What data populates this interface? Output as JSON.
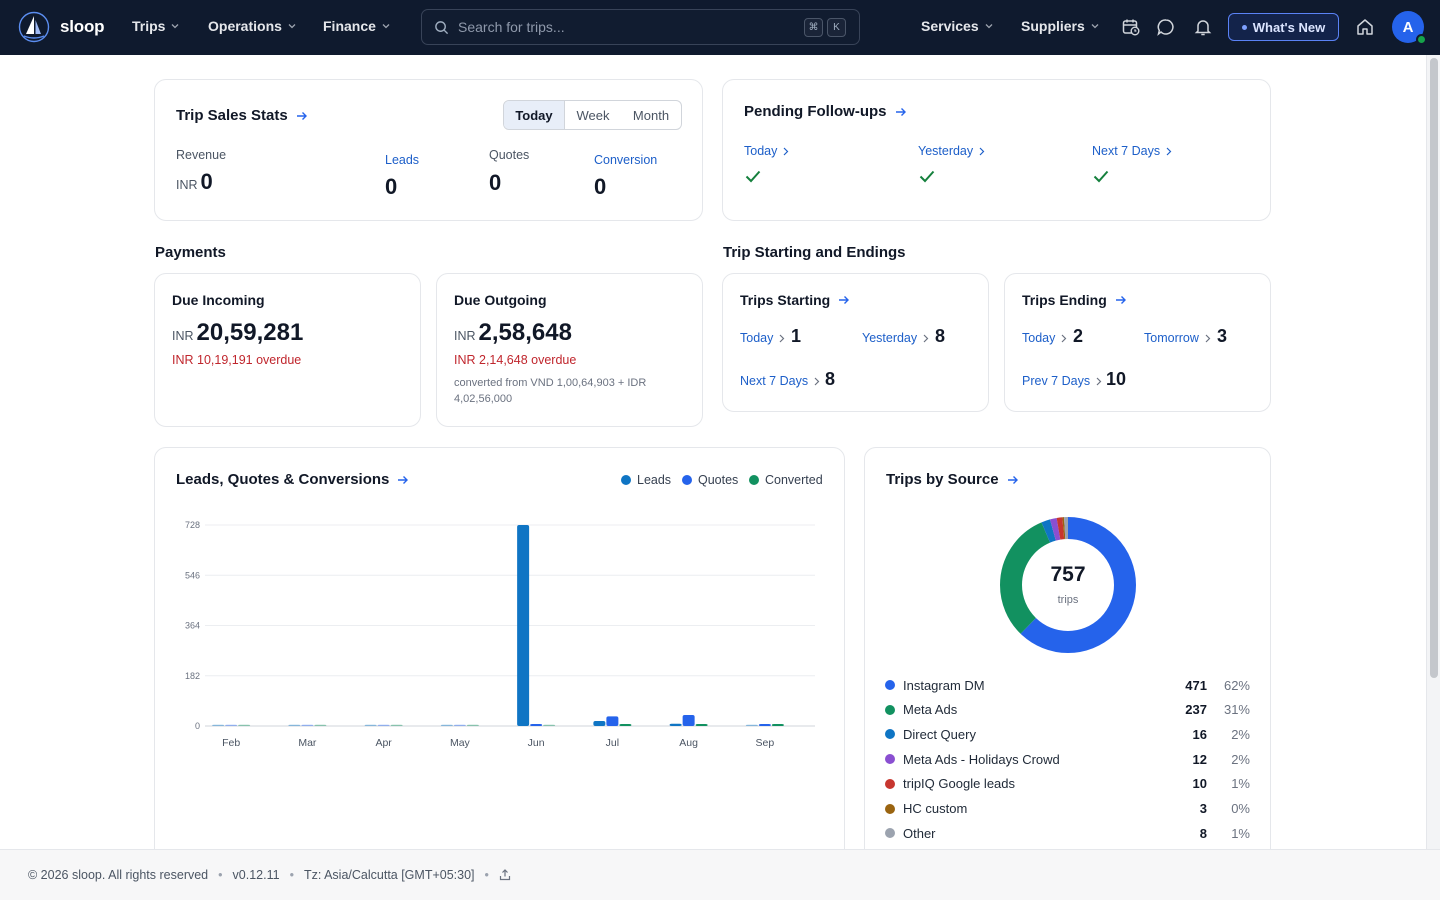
{
  "brand": {
    "name": "sloop"
  },
  "nav": {
    "left": [
      {
        "label": "Trips"
      },
      {
        "label": "Operations"
      },
      {
        "label": "Finance"
      }
    ],
    "search_placeholder": "Search for trips...",
    "shortcut_keys": [
      "⌘",
      "K"
    ],
    "right": [
      {
        "label": "Services"
      },
      {
        "label": "Suppliers"
      }
    ],
    "whats_new": "What's New",
    "avatar_initial": "A"
  },
  "trip_sales": {
    "title": "Trip Sales Stats",
    "periods": [
      "Today",
      "Week",
      "Month"
    ],
    "active_period": "Today",
    "revenue_label": "Revenue",
    "revenue_currency": "INR",
    "revenue_value": "0",
    "leads_label": "Leads",
    "leads_value": "0",
    "quotes_label": "Quotes",
    "quotes_value": "0",
    "conversion_label": "Conversion",
    "conversion_value": "0"
  },
  "followups": {
    "title": "Pending Follow-ups",
    "items": [
      {
        "label": "Today"
      },
      {
        "label": "Yesterday"
      },
      {
        "label": "Next 7 Days"
      }
    ]
  },
  "payments": {
    "section_title": "Payments",
    "incoming": {
      "title": "Due Incoming",
      "currency": "INR",
      "amount": "20,59,281",
      "overdue": "INR 10,19,191 overdue"
    },
    "outgoing": {
      "title": "Due Outgoing",
      "currency": "INR",
      "amount": "2,58,648",
      "overdue": "INR 2,14,648 overdue",
      "note": "converted from VND 1,00,64,903 + IDR 4,02,56,000"
    }
  },
  "trip_dates": {
    "section_title": "Trip Starting and Endings",
    "starting": {
      "title": "Trips Starting",
      "today_label": "Today",
      "today_value": "1",
      "yesterday_label": "Yesterday",
      "yesterday_value": "8",
      "next7_label": "Next 7 Days",
      "next7_value": "8"
    },
    "ending": {
      "title": "Trips Ending",
      "today_label": "Today",
      "today_value": "2",
      "tomorrow_label": "Tomorrow",
      "tomorrow_value": "3",
      "prev7_label": "Prev 7 Days",
      "prev7_value": "10"
    }
  },
  "leads_chart": {
    "title": "Leads, Quotes & Conversions"
  },
  "chart_data": {
    "type": "bar",
    "categories": [
      "Feb",
      "Mar",
      "Apr",
      "May",
      "Jun",
      "Jul",
      "Aug",
      "Sep"
    ],
    "series": [
      {
        "name": "Leads",
        "color": "#0f75c4",
        "values": [
          0,
          0,
          0,
          0,
          728,
          18,
          8,
          0
        ]
      },
      {
        "name": "Quotes",
        "color": "#2563eb",
        "values": [
          0,
          0,
          0,
          0,
          2,
          35,
          40,
          4
        ]
      },
      {
        "name": "Converted",
        "color": "#129160",
        "values": [
          0,
          0,
          0,
          0,
          0,
          5,
          2,
          2
        ]
      }
    ],
    "yticks": [
      "0",
      "182",
      "364",
      "546",
      "728"
    ],
    "ylim": [
      0,
      728
    ],
    "legend_position": "top-right",
    "grid": true
  },
  "sources": {
    "title": "Trips by Source",
    "total": "757",
    "total_unit": "trips",
    "items": [
      {
        "name": "Instagram DM",
        "count": "471",
        "pct": "62%",
        "value": 471,
        "color": "#2563eb"
      },
      {
        "name": "Meta Ads",
        "count": "237",
        "pct": "31%",
        "value": 237,
        "color": "#129160"
      },
      {
        "name": "Direct Query",
        "count": "16",
        "pct": "2%",
        "value": 16,
        "color": "#0f75c4"
      },
      {
        "name": "Meta Ads - Holidays Crowd",
        "count": "12",
        "pct": "2%",
        "value": 12,
        "color": "#8a4fd1"
      },
      {
        "name": "tripIQ Google leads",
        "count": "10",
        "pct": "1%",
        "value": 10,
        "color": "#c7362f"
      },
      {
        "name": "HC custom",
        "count": "3",
        "pct": "0%",
        "value": 3,
        "color": "#9a6410"
      },
      {
        "name": "Other",
        "count": "8",
        "pct": "1%",
        "value": 8,
        "color": "#9ca3af"
      }
    ]
  },
  "footer": {
    "copyright": "© 2026 sloop. All rights reserved",
    "version": "v0.12.11",
    "timezone": "Tz: Asia/Calcutta [GMT+05:30]"
  }
}
